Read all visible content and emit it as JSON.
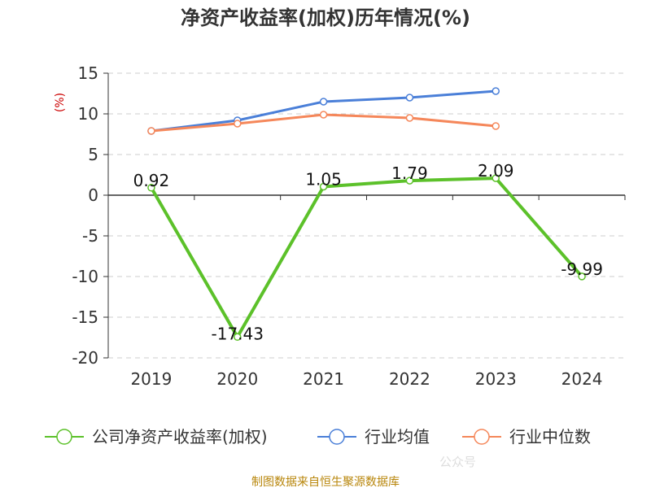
{
  "chart_data": {
    "type": "line",
    "title": "净资产收益率(加权)历年情况(%)",
    "ylabel": "(%)",
    "xlabel": "",
    "categories": [
      "2019",
      "2020",
      "2021",
      "2022",
      "2023",
      "2024"
    ],
    "ylim": [
      -20,
      15
    ],
    "yticks": [
      15,
      10,
      5,
      0,
      -5,
      -10,
      -15,
      -20
    ],
    "grid": true,
    "legend_position": "bottom",
    "series": [
      {
        "name": "公司净资产收益率(加权)",
        "color": "#5cc12a",
        "values": [
          0.92,
          -17.43,
          1.05,
          1.79,
          2.09,
          -9.99
        ],
        "labels": [
          "0.92",
          "-17.43",
          "1.05",
          "1.79",
          "2.09",
          "-9.99"
        ]
      },
      {
        "name": "行业均值",
        "color": "#4a7fd8",
        "values": [
          7.9,
          9.2,
          11.5,
          12.0,
          12.8,
          null
        ]
      },
      {
        "name": "行业中位数",
        "color": "#f5875a",
        "values": [
          7.9,
          8.8,
          9.9,
          9.5,
          8.5,
          null
        ]
      }
    ]
  },
  "source": "制图数据来自恒生聚源数据库",
  "watermark": "公众号"
}
